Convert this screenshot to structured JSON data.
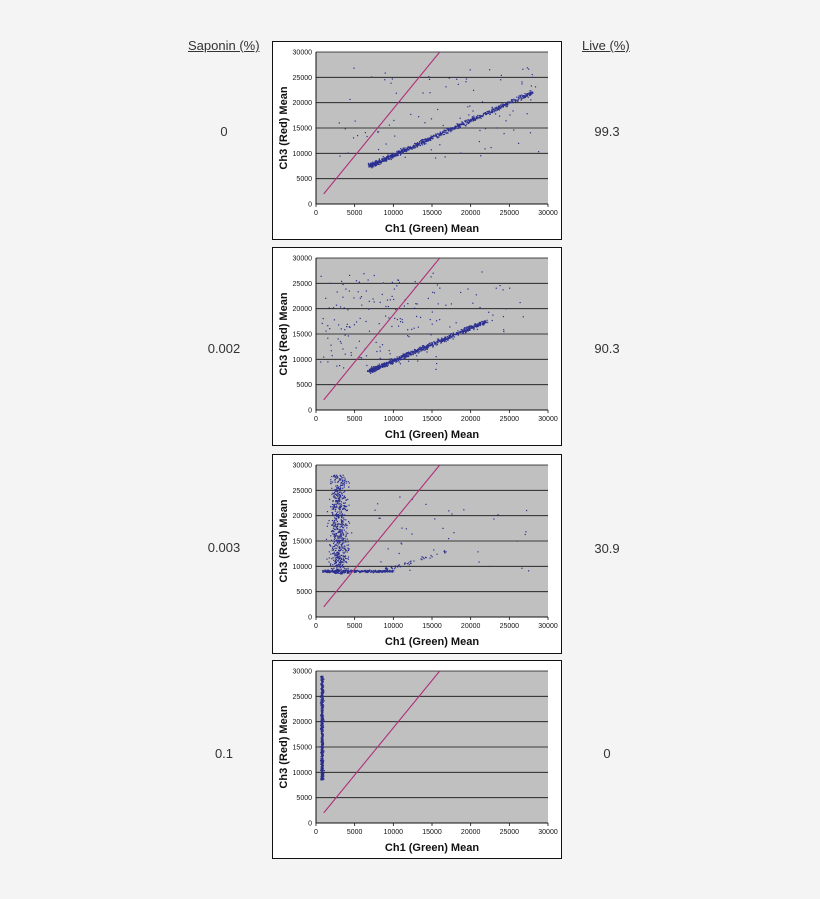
{
  "headers": {
    "saponin": "Saponin (%)",
    "live": "Live (%)"
  },
  "rows": [
    {
      "saponin": "0",
      "live": "99.3"
    },
    {
      "saponin": "0.002",
      "live": "90.3"
    },
    {
      "saponin": "0.003",
      "live": "30.9"
    },
    {
      "saponin": "0.1",
      "live": "0"
    }
  ],
  "colors": {
    "points": "#2b2f8f",
    "diagonal": "#b0307a",
    "plot_bg": "#c0c0c0",
    "grid": "#111111"
  },
  "chart_data": [
    {
      "type": "scatter",
      "xlabel": "Ch1 (Green) Mean",
      "ylabel": "Ch3 (Red) Mean",
      "xlim": [
        0,
        30000
      ],
      "ylim": [
        0,
        30000
      ],
      "xticks": [
        "0",
        "5000",
        "10000",
        "15000",
        "20000",
        "25000",
        "30000"
      ],
      "yticks": [
        "0",
        "5000",
        "10000",
        "15000",
        "20000",
        "25000",
        "30000"
      ],
      "grid": "horizontal",
      "reference_line": [
        [
          1000,
          2000
        ],
        [
          16000,
          30000
        ]
      ],
      "clusters": [
        {
          "shape": "band",
          "from": [
            7000,
            7500
          ],
          "to": [
            28000,
            22000
          ],
          "width": 700,
          "n": 900
        },
        {
          "shape": "scatter",
          "x": [
            3000,
            29000
          ],
          "y": [
            9000,
            27000
          ],
          "n": 90
        }
      ]
    },
    {
      "type": "scatter",
      "xlabel": "Ch1 (Green) Mean",
      "ylabel": "Ch3 (Red) Mean",
      "xlim": [
        0,
        30000
      ],
      "ylim": [
        0,
        30000
      ],
      "xticks": [
        "0",
        "5000",
        "10000",
        "15000",
        "20000",
        "25000",
        "30000"
      ],
      "yticks": [
        "0",
        "5000",
        "10000",
        "15000",
        "20000",
        "25000",
        "30000"
      ],
      "grid": "horizontal",
      "reference_line": [
        [
          1000,
          2000
        ],
        [
          16000,
          30000
        ]
      ],
      "clusters": [
        {
          "shape": "band",
          "from": [
            7000,
            7700
          ],
          "to": [
            22000,
            17500
          ],
          "width": 700,
          "n": 750
        },
        {
          "shape": "scatter",
          "x": [
            500,
            16000
          ],
          "y": [
            8000,
            27000
          ],
          "n": 160
        },
        {
          "shape": "scatter",
          "x": [
            16000,
            28000
          ],
          "y": [
            15000,
            28000
          ],
          "n": 25
        }
      ]
    },
    {
      "type": "scatter",
      "xlabel": "Ch1 (Green) Mean",
      "ylabel": "Ch3 (Red) Mean",
      "xlim": [
        0,
        30000
      ],
      "ylim": [
        0,
        30000
      ],
      "xticks": [
        "0",
        "5000",
        "10000",
        "15000",
        "20000",
        "25000",
        "30000"
      ],
      "yticks": [
        "0",
        "5000",
        "10000",
        "15000",
        "20000",
        "25000",
        "30000"
      ],
      "grid": "horizontal",
      "reference_line": [
        [
          1000,
          2000
        ],
        [
          16000,
          30000
        ]
      ],
      "clusters": [
        {
          "shape": "blob",
          "x": [
            1000,
            5000
          ],
          "y": [
            8500,
            28000
          ],
          "n": 650
        },
        {
          "shape": "band",
          "from": [
            1000,
            9000
          ],
          "to": [
            10000,
            9000
          ],
          "width": 400,
          "n": 300
        },
        {
          "shape": "band",
          "from": [
            9000,
            9300
          ],
          "to": [
            17000,
            13000
          ],
          "width": 500,
          "n": 50
        },
        {
          "shape": "scatter",
          "x": [
            3000,
            28000
          ],
          "y": [
            9000,
            24000
          ],
          "n": 40
        }
      ]
    },
    {
      "type": "scatter",
      "xlabel": "Ch1 (Green) Mean",
      "ylabel": "Ch3 (Red) Mean",
      "xlim": [
        0,
        30000
      ],
      "ylim": [
        0,
        30000
      ],
      "xticks": [
        "0",
        "5000",
        "10000",
        "15000",
        "20000",
        "25000",
        "30000"
      ],
      "yticks": [
        "0",
        "5000",
        "10000",
        "15000",
        "20000",
        "25000",
        "30000"
      ],
      "grid": "horizontal",
      "reference_line": [
        [
          1000,
          2000
        ],
        [
          16000,
          30000
        ]
      ],
      "clusters": [
        {
          "shape": "blob",
          "x": [
            500,
            1100
          ],
          "y": [
            8500,
            29000
          ],
          "n": 700
        }
      ]
    }
  ]
}
